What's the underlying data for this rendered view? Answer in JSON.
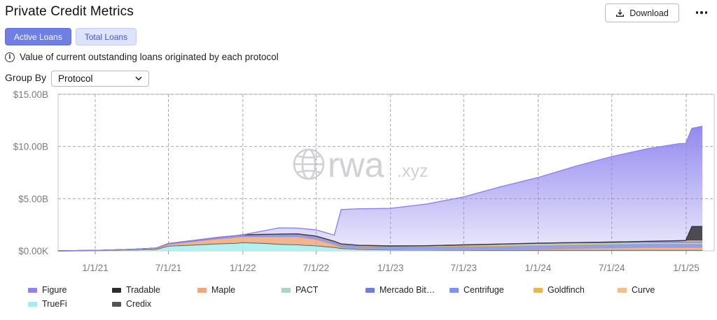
{
  "header": {
    "title": "Private Credit Metrics",
    "download_label": "Download"
  },
  "tabs": [
    {
      "label": "Active Loans",
      "active": true
    },
    {
      "label": "Total Loans",
      "active": false
    }
  ],
  "info_text": "Value of current outstanding loans originated by each protocol",
  "group_by": {
    "label": "Group By",
    "selected": "Protocol"
  },
  "watermark": {
    "main": "rwa",
    "suffix": ".xyz"
  },
  "colors": {
    "accent": "#6f7fe6",
    "grid": "#9a9aa3"
  },
  "chart_data": {
    "type": "area",
    "stacked": true,
    "y_ticks": [
      "$15.00B",
      "$10.00B",
      "$5.00B",
      "$0.00K"
    ],
    "y_tick_values": [
      15,
      10,
      5,
      0
    ],
    "ylim": [
      0,
      15
    ],
    "y_unit": "B USD",
    "x_ticks": [
      "1/1/21",
      "7/1/21",
      "1/1/22",
      "7/1/22",
      "1/1/23",
      "7/1/23",
      "1/1/24",
      "7/1/24",
      "1/1/25"
    ],
    "x": [
      "2020-10-01",
      "2021-01-01",
      "2021-04-01",
      "2021-06-01",
      "2021-07-01",
      "2021-09-01",
      "2021-11-01",
      "2021-12-15",
      "2022-01-01",
      "2022-02-15",
      "2022-04-01",
      "2022-05-15",
      "2022-07-01",
      "2022-08-15",
      "2022-09-01",
      "2022-10-15",
      "2023-01-01",
      "2023-04-01",
      "2023-07-01",
      "2023-10-01",
      "2024-01-01",
      "2024-04-01",
      "2024-07-01",
      "2024-10-01",
      "2024-12-15",
      "2024-12-31",
      "2025-01-15",
      "2025-02-10"
    ],
    "series": [
      {
        "name": "TrueFi",
        "color": "#a6eded",
        "values": [
          0.0,
          0.02,
          0.08,
          0.15,
          0.45,
          0.55,
          0.65,
          0.7,
          0.75,
          0.7,
          0.6,
          0.55,
          0.45,
          0.3,
          0.2,
          0.12,
          0.08,
          0.06,
          0.05,
          0.05,
          0.05,
          0.05,
          0.05,
          0.05,
          0.05,
          0.05,
          0.05,
          0.05
        ]
      },
      {
        "name": "Credix",
        "color": "#545454",
        "values": [
          0.0,
          0.0,
          0.0,
          0.0,
          0.01,
          0.02,
          0.03,
          0.03,
          0.04,
          0.04,
          0.04,
          0.04,
          0.04,
          0.04,
          0.04,
          0.03,
          0.02,
          0.02,
          0.02,
          0.02,
          0.02,
          0.02,
          0.02,
          0.02,
          0.02,
          0.02,
          0.02,
          0.02
        ]
      },
      {
        "name": "Maple",
        "color": "#eea87c",
        "values": [
          0.0,
          0.0,
          0.02,
          0.05,
          0.15,
          0.3,
          0.45,
          0.55,
          0.55,
          0.6,
          0.7,
          0.75,
          0.6,
          0.25,
          0.1,
          0.05,
          0.03,
          0.03,
          0.03,
          0.05,
          0.1,
          0.15,
          0.2,
          0.25,
          0.25,
          0.25,
          0.25,
          0.25
        ]
      },
      {
        "name": "Centrifuge",
        "color": "#7f90f0",
        "values": [
          0.0,
          0.02,
          0.04,
          0.06,
          0.08,
          0.1,
          0.12,
          0.12,
          0.14,
          0.16,
          0.18,
          0.2,
          0.22,
          0.22,
          0.22,
          0.23,
          0.24,
          0.26,
          0.28,
          0.28,
          0.29,
          0.3,
          0.3,
          0.3,
          0.3,
          0.3,
          0.3,
          0.3
        ]
      },
      {
        "name": "Goldfinch",
        "color": "#e5b559",
        "values": [
          0.0,
          0.0,
          0.0,
          0.0,
          0.01,
          0.02,
          0.04,
          0.05,
          0.06,
          0.07,
          0.08,
          0.09,
          0.1,
          0.1,
          0.1,
          0.1,
          0.1,
          0.1,
          0.1,
          0.1,
          0.09,
          0.08,
          0.07,
          0.07,
          0.07,
          0.07,
          0.07,
          0.07
        ]
      },
      {
        "name": "PACT",
        "color": "#aed3c3",
        "values": [
          0.0,
          0.0,
          0.0,
          0.0,
          0.0,
          0.0,
          0.0,
          0.0,
          0.0,
          0.0,
          0.0,
          0.0,
          0.0,
          0.0,
          0.0,
          0.0,
          0.0,
          0.0,
          0.05,
          0.1,
          0.12,
          0.12,
          0.12,
          0.1,
          0.1,
          0.1,
          0.1,
          0.1
        ]
      },
      {
        "name": "Mercado Bit…",
        "color": "#6f7de0",
        "values": [
          0.0,
          0.0,
          0.0,
          0.0,
          0.0,
          0.0,
          0.0,
          0.0,
          0.0,
          0.0,
          0.0,
          0.0,
          0.0,
          0.0,
          0.0,
          0.0,
          0.0,
          0.02,
          0.04,
          0.05,
          0.06,
          0.07,
          0.08,
          0.08,
          0.08,
          0.08,
          0.08,
          0.08
        ]
      },
      {
        "name": "Curve",
        "color": "#f0bf8b",
        "values": [
          0.0,
          0.0,
          0.0,
          0.0,
          0.0,
          0.0,
          0.0,
          0.0,
          0.0,
          0.0,
          0.0,
          0.0,
          0.0,
          0.0,
          0.0,
          0.0,
          0.0,
          0.0,
          0.0,
          0.0,
          0.0,
          0.0,
          0.0,
          0.05,
          0.1,
          0.12,
          0.12,
          0.12
        ]
      },
      {
        "name": "Tradable",
        "color": "#2b2b33",
        "values": [
          0.0,
          0.0,
          0.0,
          0.0,
          0.0,
          0.0,
          0.0,
          0.0,
          0.0,
          0.0,
          0.0,
          0.0,
          0.0,
          0.0,
          0.0,
          0.0,
          0.0,
          0.0,
          0.0,
          0.0,
          0.0,
          0.0,
          0.0,
          0.0,
          0.0,
          0.0,
          1.35,
          1.35
        ]
      },
      {
        "name": "Figure",
        "color": "#8e83ee",
        "values": [
          0.0,
          0.0,
          0.0,
          0.0,
          0.0,
          0.0,
          0.0,
          0.0,
          0.0,
          0.3,
          0.6,
          0.55,
          0.6,
          0.6,
          3.3,
          3.5,
          3.6,
          4.0,
          4.6,
          5.5,
          6.3,
          7.3,
          8.2,
          8.9,
          9.3,
          9.3,
          9.4,
          9.6
        ]
      }
    ],
    "legend": [
      "Figure",
      "Tradable",
      "Maple",
      "PACT",
      "Mercado Bit…",
      "Centrifuge",
      "Goldfinch",
      "Curve",
      "TrueFi",
      "Credix"
    ],
    "legend_position": "bottom",
    "grid": true
  }
}
